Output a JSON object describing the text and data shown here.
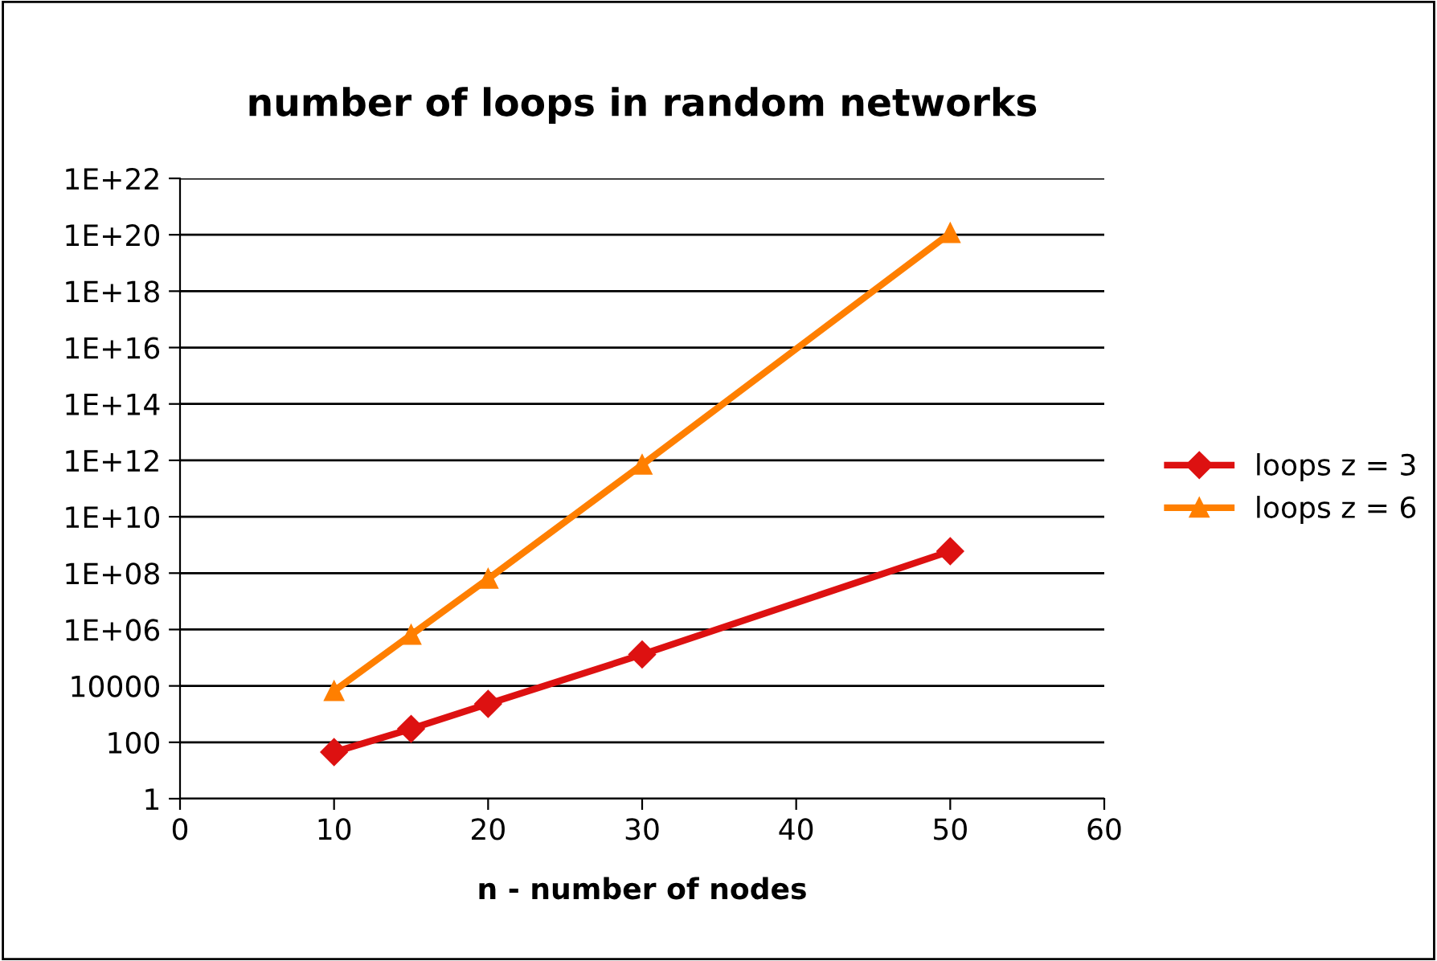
{
  "chart_data": {
    "type": "line",
    "title": "number of loops in random networks",
    "xlabel": "n - number of nodes",
    "x": [
      10,
      15,
      20,
      30,
      50
    ],
    "series": [
      {
        "name": "loops z = 3",
        "color": "#dd1111",
        "marker": "diamond",
        "values": [
          45,
          300,
          2300,
          130000,
          600000000
        ]
      },
      {
        "name": "loops z = 6",
        "color": "#ff7f00",
        "marker": "triangle",
        "values": [
          6600,
          650000,
          63000000,
          700000000000,
          1.15e+20
        ]
      }
    ],
    "log": "y",
    "xlim": [
      0,
      60
    ],
    "xticks": [
      0,
      10,
      20,
      30,
      40,
      50,
      60
    ],
    "ylim": [
      1,
      1e+22
    ],
    "yticks": [
      {
        "value": 1,
        "label": "1"
      },
      {
        "value": 100,
        "label": "100"
      },
      {
        "value": 10000,
        "label": "10000"
      },
      {
        "value": 1000000.0,
        "label": "1E+06"
      },
      {
        "value": 100000000.0,
        "label": "1E+08"
      },
      {
        "value": 10000000000.0,
        "label": "1E+10"
      },
      {
        "value": 1000000000000.0,
        "label": "1E+12"
      },
      {
        "value": 100000000000000.0,
        "label": "1E+14"
      },
      {
        "value": 1e+16,
        "label": "1E+16"
      },
      {
        "value": 1e+18,
        "label": "1E+18"
      },
      {
        "value": 1e+20,
        "label": "1E+20"
      },
      {
        "value": 1e+22,
        "label": "1E+22"
      }
    ],
    "grid": "y",
    "legend": "right",
    "line_style": "solid"
  }
}
